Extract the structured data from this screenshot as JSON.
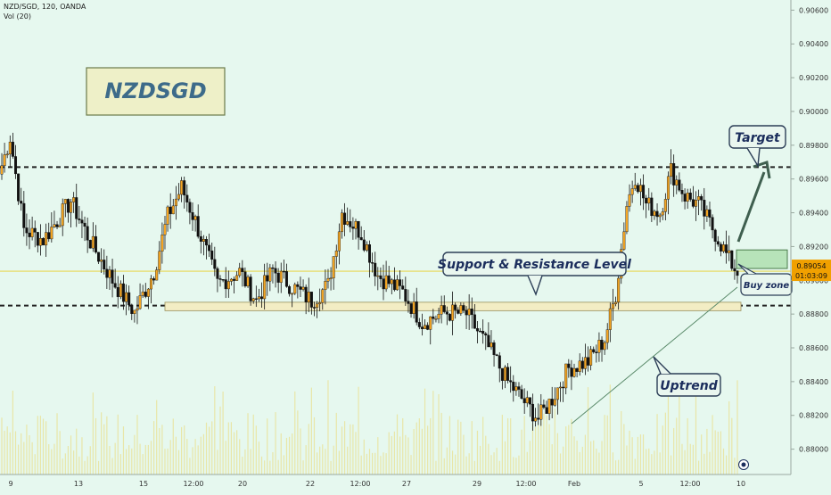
{
  "header": {
    "symbol_line": "NZD/SGD, 120, OANDA",
    "volume_line": "Vol (20)"
  },
  "annotations": {
    "title_box": "NZDSGD",
    "support_resistance": "Support & Resistance Level",
    "target": "Target",
    "buy_zone": "Buy zone",
    "uptrend": "Uptrend"
  },
  "price_label": {
    "value": "0.89054",
    "timer": "01:03:09"
  },
  "colors": {
    "background": "#e6f8ef",
    "candle_up": "#f5a623",
    "candle_down": "#111111",
    "volume": "#e8e6a8",
    "price_line": "#e8cf2a",
    "price_tag": "#f0a000",
    "buy_zone": "#b7e3b9",
    "text_dark": "#1b2d5c"
  },
  "chart_data": {
    "type": "candlestick",
    "ylim": [
      0.8785,
      0.9066
    ],
    "y_ticks": [
      "0.90600",
      "0.90400",
      "0.90200",
      "0.90000",
      "0.89800",
      "0.89600",
      "0.89400",
      "0.89200",
      "0.89000",
      "0.88800",
      "0.88600",
      "0.88400",
      "0.88200",
      "0.88000"
    ],
    "x_ticks": [
      "9",
      "13",
      "15",
      "12:00",
      "20",
      "22",
      "12:00",
      "27",
      "29",
      "12:00",
      "Feb",
      "5",
      "12:00",
      "10"
    ],
    "resistance_level": 0.8967,
    "support_level": 0.8885,
    "support_zone": [
      0.8882,
      0.8887
    ],
    "buy_zone": [
      0.8907,
      0.8918
    ],
    "target_price": 0.8965,
    "current_price": 0.89054,
    "uptrend_line": [
      {
        "x": "Feb",
        "y": 0.881
      },
      {
        "x": "10",
        "y": 0.8894
      }
    ],
    "path_anchors": [
      [
        0,
        0.8968
      ],
      [
        3,
        0.8985
      ],
      [
        8,
        0.893
      ],
      [
        15,
        0.8924
      ],
      [
        25,
        0.8947
      ],
      [
        32,
        0.8923
      ],
      [
        40,
        0.89
      ],
      [
        48,
        0.8881
      ],
      [
        55,
        0.8905
      ],
      [
        60,
        0.8938
      ],
      [
        65,
        0.8955
      ],
      [
        70,
        0.8935
      ],
      [
        78,
        0.8898
      ],
      [
        86,
        0.8905
      ],
      [
        92,
        0.8888
      ],
      [
        98,
        0.8906
      ],
      [
        106,
        0.8895
      ],
      [
        112,
        0.8888
      ],
      [
        118,
        0.8897
      ],
      [
        123,
        0.894
      ],
      [
        130,
        0.8928
      ],
      [
        136,
        0.8903
      ],
      [
        145,
        0.8893
      ],
      [
        152,
        0.8875
      ],
      [
        160,
        0.8881
      ],
      [
        168,
        0.888
      ],
      [
        176,
        0.886
      ],
      [
        183,
        0.884
      ],
      [
        189,
        0.8828
      ],
      [
        194,
        0.8818
      ],
      [
        199,
        0.883
      ],
      [
        205,
        0.8848
      ],
      [
        212,
        0.8852
      ],
      [
        218,
        0.8865
      ],
      [
        222,
        0.8892
      ],
      [
        226,
        0.8945
      ],
      [
        229,
        0.8962
      ],
      [
        233,
        0.8945
      ],
      [
        238,
        0.894
      ],
      [
        242,
        0.8965
      ],
      [
        247,
        0.895
      ],
      [
        252,
        0.8945
      ],
      [
        258,
        0.8928
      ],
      [
        263,
        0.8912
      ],
      [
        266,
        0.8905
      ]
    ]
  }
}
